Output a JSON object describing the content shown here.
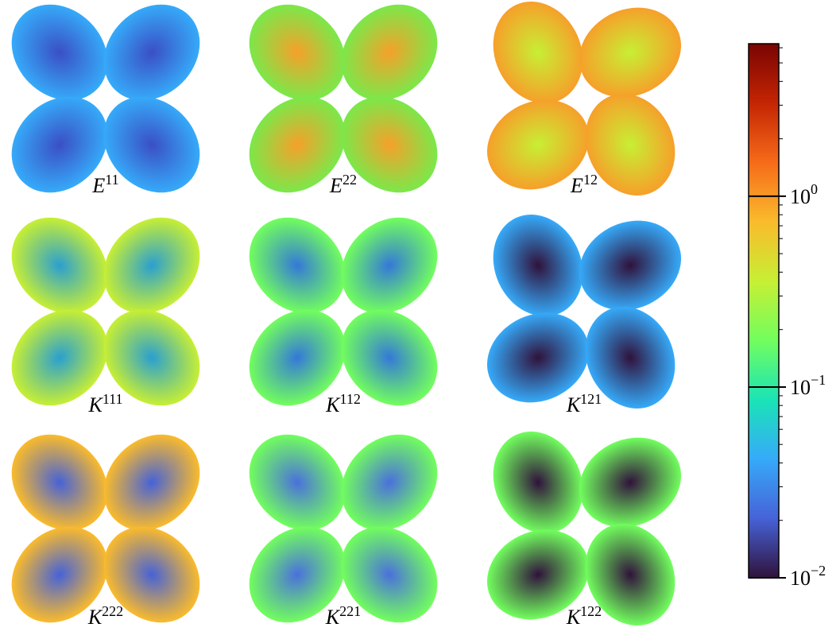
{
  "panels": [
    {
      "base": "E",
      "sup": "11"
    },
    {
      "base": "E",
      "sup": "22"
    },
    {
      "base": "E",
      "sup": "12"
    },
    {
      "base": "K",
      "sup": "111"
    },
    {
      "base": "K",
      "sup": "112"
    },
    {
      "base": "K",
      "sup": "121"
    },
    {
      "base": "K",
      "sup": "222"
    },
    {
      "base": "K",
      "sup": "221"
    },
    {
      "base": "K",
      "sup": "122"
    }
  ],
  "colorbar": {
    "scale": "log",
    "lim": [
      0.01,
      6.3
    ],
    "colormap": [
      "#30123b",
      "#4662d7",
      "#36aaf9",
      "#1ae4b6",
      "#72fe5e",
      "#c7ef34",
      "#fabb2c",
      "#f66b19",
      "#c42503",
      "#7a0403"
    ],
    "ticks": [
      {
        "value": 0.01,
        "base": "10",
        "exponent": "−2"
      },
      {
        "value": 0.1,
        "base": "10",
        "exponent": "−1"
      },
      {
        "value": 1,
        "base": "10",
        "exponent": "0"
      }
    ],
    "minor_ticks": [
      0.02,
      0.03,
      0.04,
      0.05,
      0.06,
      0.07,
      0.08,
      0.09,
      0.2,
      0.3,
      0.4,
      0.5,
      0.6,
      0.7,
      0.8,
      0.9,
      2,
      3,
      4,
      5,
      6
    ]
  }
}
